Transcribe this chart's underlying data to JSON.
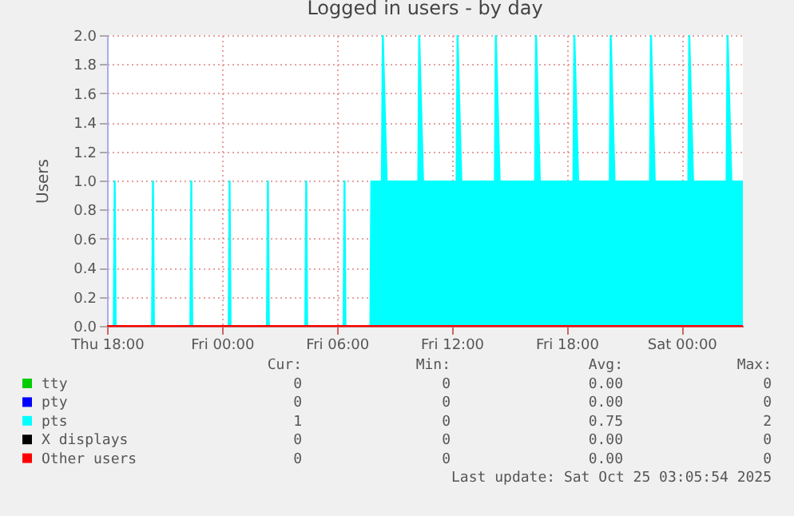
{
  "chart_data": {
    "type": "area",
    "title": "Logged in users - by day",
    "ylabel": "Users",
    "xlim": [
      "2025-10-23T18:00",
      "2025-10-25T03:12"
    ],
    "ylim": [
      0,
      2
    ],
    "xticks": [
      {
        "value": "2025-10-23T18:00",
        "label": "Thu 18:00"
      },
      {
        "value": "2025-10-24T00:00",
        "label": "Fri 00:00"
      },
      {
        "value": "2025-10-24T06:00",
        "label": "Fri 06:00"
      },
      {
        "value": "2025-10-24T12:00",
        "label": "Fri 12:00"
      },
      {
        "value": "2025-10-24T18:00",
        "label": "Fri 18:00"
      },
      {
        "value": "2025-10-25T00:00",
        "label": "Sat 00:00"
      }
    ],
    "yticks": [
      {
        "value": 0,
        "label": "0.0"
      },
      {
        "value": 0.2,
        "label": "0.2"
      },
      {
        "value": 0.4,
        "label": "0.4"
      },
      {
        "value": 0.6,
        "label": "0.6"
      },
      {
        "value": 0.8,
        "label": "0.8"
      },
      {
        "value": 1,
        "label": "1.0"
      },
      {
        "value": 1.2,
        "label": "1.2"
      },
      {
        "value": 1.4,
        "label": "1.4"
      },
      {
        "value": 1.6,
        "label": "1.6"
      },
      {
        "value": 1.8,
        "label": "1.8"
      },
      {
        "value": 2,
        "label": "2.0"
      }
    ],
    "grid": true,
    "legend": "bottom",
    "series": [
      {
        "name": "tty",
        "color": "#00cc00"
      },
      {
        "name": "pty",
        "color": "#0000ff"
      },
      {
        "name": "pts",
        "color": "#00ffff",
        "x": [
          "2025-10-23T18:00",
          "2025-10-23T18:18",
          "2025-10-23T18:21",
          "2025-10-23T18:27",
          "2025-10-23T18:30",
          "2025-10-23T20:18",
          "2025-10-23T20:21",
          "2025-10-23T20:27",
          "2025-10-23T20:30",
          "2025-10-23T22:18",
          "2025-10-23T22:21",
          "2025-10-23T22:27",
          "2025-10-23T22:30",
          "2025-10-24T00:18",
          "2025-10-24T00:21",
          "2025-10-24T00:27",
          "2025-10-24T00:30",
          "2025-10-24T02:18",
          "2025-10-24T02:21",
          "2025-10-24T02:27",
          "2025-10-24T02:30",
          "2025-10-24T04:18",
          "2025-10-24T04:21",
          "2025-10-24T04:27",
          "2025-10-24T04:30",
          "2025-10-24T06:18",
          "2025-10-24T06:21",
          "2025-10-24T06:27",
          "2025-10-24T06:30",
          "2025-10-24T07:42",
          "2025-10-24T07:45",
          "2025-10-24T08:18",
          "2025-10-24T08:21",
          "2025-10-24T08:27",
          "2025-10-24T08:39",
          "2025-10-24T10:12",
          "2025-10-24T10:15",
          "2025-10-24T10:21",
          "2025-10-24T10:33",
          "2025-10-24T12:12",
          "2025-10-24T12:15",
          "2025-10-24T12:21",
          "2025-10-24T12:33",
          "2025-10-24T14:12",
          "2025-10-24T14:15",
          "2025-10-24T14:21",
          "2025-10-24T14:33",
          "2025-10-24T16:18",
          "2025-10-24T16:21",
          "2025-10-24T16:27",
          "2025-10-24T16:39",
          "2025-10-24T18:18",
          "2025-10-24T18:21",
          "2025-10-24T18:27",
          "2025-10-24T18:39",
          "2025-10-24T20:12",
          "2025-10-24T20:15",
          "2025-10-24T20:21",
          "2025-10-24T20:33",
          "2025-10-24T22:18",
          "2025-10-24T22:21",
          "2025-10-24T22:27",
          "2025-10-24T22:39",
          "2025-10-25T00:18",
          "2025-10-25T00:21",
          "2025-10-25T00:27",
          "2025-10-25T00:39",
          "2025-10-25T02:18",
          "2025-10-25T02:21",
          "2025-10-25T02:27",
          "2025-10-25T02:39",
          "2025-10-25T03:12"
        ],
        "values": [
          0,
          0,
          1,
          1,
          0,
          0,
          1,
          1,
          0,
          0,
          1,
          1,
          0,
          0,
          1,
          1,
          0,
          0,
          1,
          1,
          0,
          0,
          1,
          1,
          0,
          0,
          1,
          1,
          0,
          0,
          1,
          1,
          2,
          2,
          1,
          1,
          2,
          2,
          1,
          1,
          2,
          2,
          1,
          1,
          2,
          2,
          1,
          1,
          2,
          2,
          1,
          1,
          2,
          2,
          1,
          1,
          2,
          2,
          1,
          1,
          2,
          2,
          1,
          1,
          2,
          2,
          1,
          1,
          2,
          2,
          1,
          1
        ]
      },
      {
        "name": "X displays",
        "color": "#000000"
      },
      {
        "name": "Other users",
        "color": "#ff0000",
        "type": "line",
        "x": [
          "2025-10-23T18:00",
          "2025-10-25T03:12"
        ],
        "values": [
          0,
          0
        ]
      }
    ],
    "annotations": [
      "Cur:",
      "Min:",
      "Avg:",
      "Max:",
      "0",
      "0",
      "0.00",
      "0",
      "0",
      "0",
      "0.00",
      "0",
      "1",
      "0",
      "0.75",
      "2",
      "0",
      "0",
      "0.00",
      "0",
      "0",
      "0",
      "0.00",
      "0",
      "Last update: Sat Oct 25 03:05:54 2025"
    ]
  }
}
